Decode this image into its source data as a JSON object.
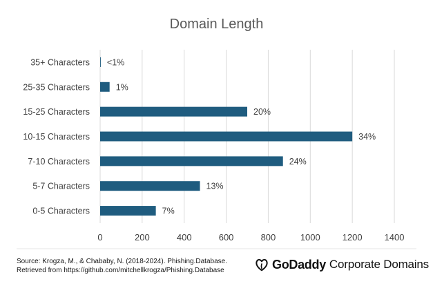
{
  "chart_data": {
    "type": "bar",
    "orientation": "horizontal",
    "title": "Domain Length",
    "xlabel": "",
    "ylabel": "",
    "categories": [
      "35+ Characters",
      "25-35 Characters",
      "15-25 Characters",
      "10-15 Characters",
      "7-10 Characters",
      "5-7 Characters",
      "0-5 Characters"
    ],
    "values": [
      3,
      45,
      700,
      1200,
      870,
      475,
      265
    ],
    "data_labels": [
      "<1%",
      "1%",
      "20%",
      "34%",
      "24%",
      "13%",
      "7%"
    ],
    "xlim": [
      0,
      1400
    ],
    "xticks": [
      0,
      200,
      400,
      600,
      800,
      1000,
      1200,
      1400
    ],
    "grid": "vertical",
    "legend": "none",
    "bar_color": "#1f5c7f",
    "grid_color": "#d9d9d9",
    "text_color": "#404040"
  },
  "footer": {
    "source_line1": "Source: Krogza, M., & Chababy, N. (2018-2024). Phishing.Database.",
    "source_line2": "Retrieved from  https://github.com/mitchellkrogza/Phishing.Database",
    "brand_name": "GoDaddy",
    "brand_sub": "Corporate Domains"
  }
}
